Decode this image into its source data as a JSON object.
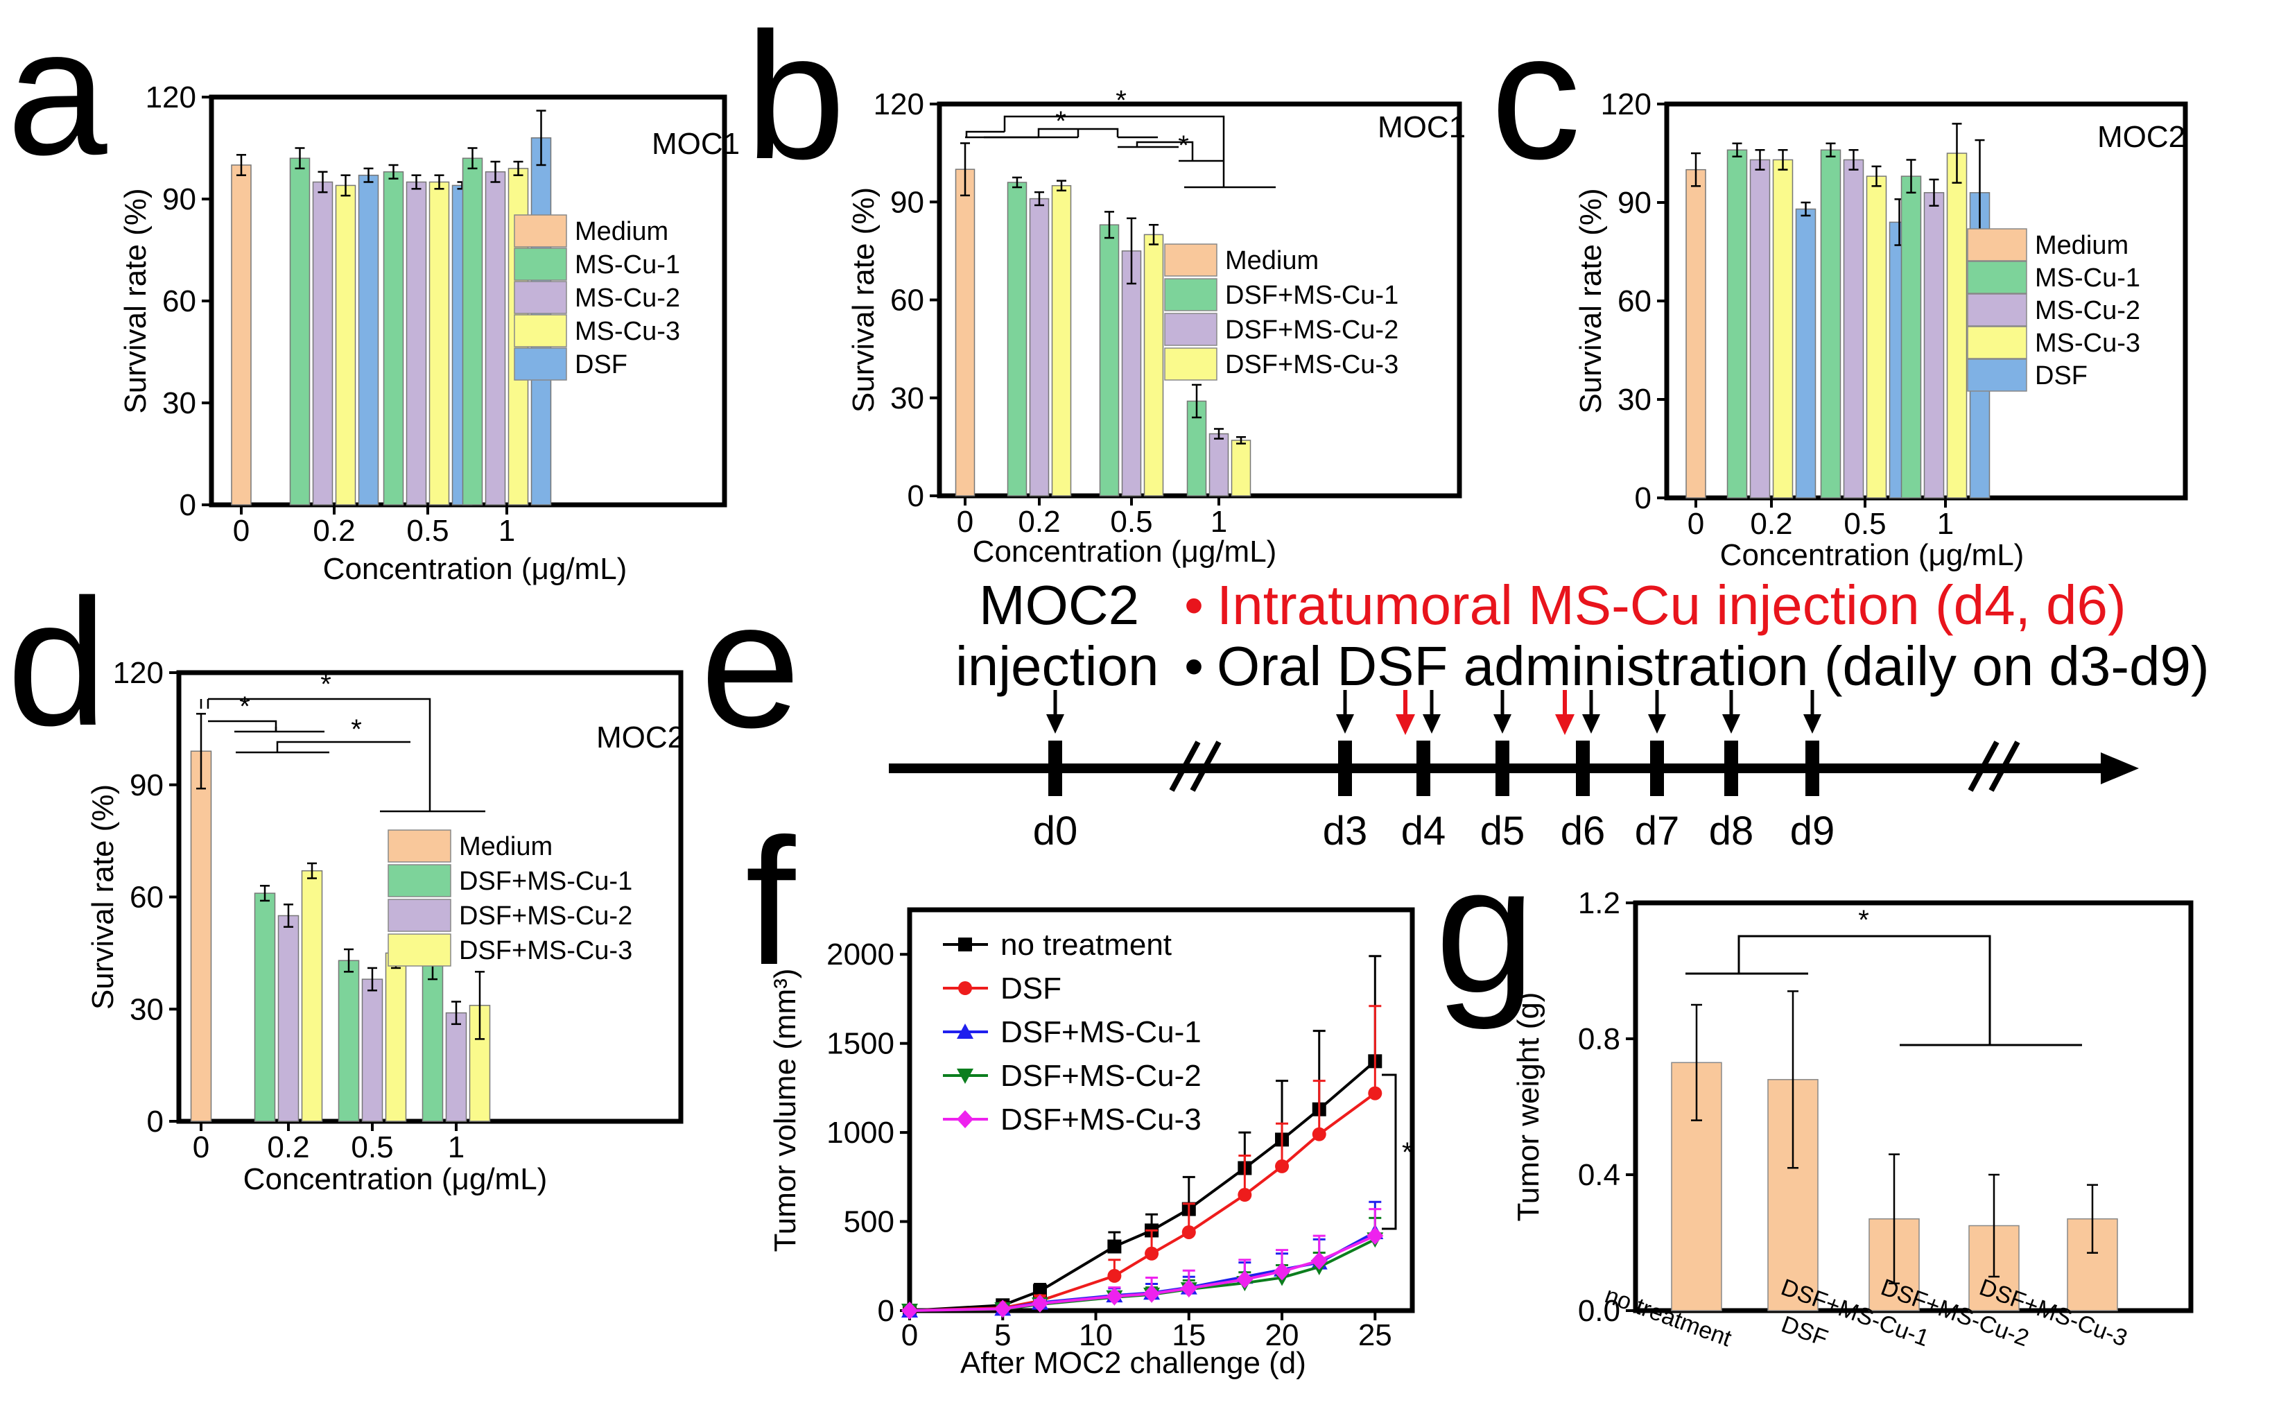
{
  "chart_data": [
    {
      "panel": "a",
      "type": "bar",
      "title": "MOC1",
      "xlabel": "Concentration (μg/mL)",
      "ylabel": "Survival rate (%)",
      "ylim": [
        0,
        120
      ],
      "yticks": [
        "0",
        "30",
        "60",
        "90",
        "120"
      ],
      "categories": [
        "0",
        "0.2",
        "0.5",
        "1"
      ],
      "series": [
        {
          "name": "Medium",
          "color": "#f9c89b",
          "values": [
            100,
            null,
            null,
            null
          ],
          "errors": [
            3,
            null,
            null,
            null
          ]
        },
        {
          "name": "MS-Cu-1",
          "color": "#7dd39a",
          "values": [
            null,
            102,
            98,
            102
          ],
          "errors": [
            null,
            3,
            2,
            3
          ]
        },
        {
          "name": "MS-Cu-2",
          "color": "#c4b3d8",
          "values": [
            null,
            95,
            95,
            98
          ],
          "errors": [
            null,
            3,
            2,
            3
          ]
        },
        {
          "name": "MS-Cu-3",
          "color": "#fafa8c",
          "values": [
            null,
            94,
            95,
            99
          ],
          "errors": [
            null,
            3,
            2,
            2
          ]
        },
        {
          "name": "DSF",
          "color": "#7fb1e4",
          "values": [
            null,
            97,
            94,
            108
          ],
          "errors": [
            null,
            2,
            1,
            8
          ]
        }
      ]
    },
    {
      "panel": "b",
      "type": "bar",
      "title": "MOC1",
      "xlabel": "Concentration (μg/mL)",
      "ylabel": "Survival rate (%)",
      "ylim": [
        0,
        120
      ],
      "yticks": [
        "0",
        "30",
        "60",
        "90",
        "120"
      ],
      "categories": [
        "0",
        "0.2",
        "0.5",
        "1"
      ],
      "series": [
        {
          "name": "Medium",
          "color": "#f9c89b",
          "values": [
            100,
            null,
            null,
            null
          ],
          "errors": [
            8,
            null,
            null,
            null
          ]
        },
        {
          "name": "DSF+MS-Cu-1",
          "color": "#7dd39a",
          "values": [
            null,
            96,
            83,
            29
          ],
          "errors": [
            null,
            1.5,
            4,
            5
          ]
        },
        {
          "name": "DSF+MS-Cu-2",
          "color": "#c4b3d8",
          "values": [
            null,
            91,
            75,
            19
          ],
          "errors": [
            null,
            2,
            10,
            1.5
          ]
        },
        {
          "name": "DSF+MS-Cu-3",
          "color": "#fafa8c",
          "values": [
            null,
            95,
            80,
            17
          ],
          "errors": [
            null,
            1.5,
            3,
            1
          ]
        }
      ],
      "significance": [
        "*",
        "*",
        "*"
      ]
    },
    {
      "panel": "c",
      "type": "bar",
      "title": "MOC2",
      "xlabel": "Concentration (μg/mL)",
      "ylabel": "Survival rate (%)",
      "ylim": [
        0,
        120
      ],
      "yticks": [
        "0",
        "30",
        "60",
        "90",
        "120"
      ],
      "categories": [
        "0",
        "0.2",
        "0.5",
        "1"
      ],
      "series": [
        {
          "name": "Medium",
          "color": "#f9c89b",
          "values": [
            100,
            null,
            null,
            null
          ],
          "errors": [
            5,
            null,
            null,
            null
          ]
        },
        {
          "name": "MS-Cu-1",
          "color": "#7dd39a",
          "values": [
            null,
            106,
            106,
            98
          ],
          "errors": [
            null,
            2,
            2,
            5
          ]
        },
        {
          "name": "MS-Cu-2",
          "color": "#c4b3d8",
          "values": [
            null,
            103,
            103,
            93
          ],
          "errors": [
            null,
            3,
            3,
            4
          ]
        },
        {
          "name": "MS-Cu-3",
          "color": "#fafa8c",
          "values": [
            null,
            103,
            98,
            105
          ],
          "errors": [
            null,
            3,
            3,
            9
          ]
        },
        {
          "name": "DSF",
          "color": "#7fb1e4",
          "values": [
            null,
            88,
            84,
            93
          ],
          "errors": [
            null,
            2,
            7,
            16
          ]
        }
      ]
    },
    {
      "panel": "d",
      "type": "bar",
      "title": "MOC2",
      "xlabel": "Concentration (μg/mL)",
      "ylabel": "Survival rate (%)",
      "ylim": [
        0,
        120
      ],
      "yticks": [
        "0",
        "30",
        "60",
        "90",
        "120"
      ],
      "categories": [
        "0",
        "0.2",
        "0.5",
        "1"
      ],
      "series": [
        {
          "name": "Medium",
          "color": "#f9c89b",
          "values": [
            99,
            null,
            null,
            null
          ],
          "errors": [
            10,
            null,
            null,
            null
          ]
        },
        {
          "name": "DSF+MS-Cu-1",
          "color": "#7dd39a",
          "values": [
            null,
            61,
            43,
            42
          ],
          "errors": [
            null,
            2,
            3,
            4
          ]
        },
        {
          "name": "DSF+MS-Cu-2",
          "color": "#c4b3d8",
          "values": [
            null,
            55,
            38,
            29
          ],
          "errors": [
            null,
            3,
            3,
            3
          ]
        },
        {
          "name": "DSF+MS-Cu-3",
          "color": "#fafa8c",
          "values": [
            null,
            67,
            45,
            31
          ],
          "errors": [
            null,
            2,
            4,
            9
          ]
        }
      ],
      "significance": [
        "*",
        "*",
        "*"
      ]
    },
    {
      "panel": "e",
      "type": "timeline",
      "heading": {
        "injection_label_1": "MOC2",
        "injection_label_2": "injection",
        "bullet": "•",
        "red_line": "Intratumoral MS-Cu injection (d4, d6)",
        "black_line": "Oral DSF administration (daily on d3-d9)"
      },
      "days": [
        "d0",
        "d3",
        "d4",
        "d5",
        "d6",
        "d7",
        "d8",
        "d9"
      ],
      "red_arrow_days": [
        "d4",
        "d6"
      ],
      "black_arrow_days": [
        "d0",
        "d3",
        "d4",
        "d5",
        "d6",
        "d7",
        "d8",
        "d9"
      ],
      "axis_break": "//"
    },
    {
      "panel": "f",
      "type": "line",
      "xlabel": "After MOC2 challenge (d)",
      "ylabel": "Tumor volume (mm³)",
      "xlim": [
        0,
        27
      ],
      "ylim": [
        0,
        2250
      ],
      "xticks": [
        "0",
        "5",
        "10",
        "15",
        "20",
        "25"
      ],
      "yticks": [
        "0",
        "500",
        "1000",
        "1500",
        "2000"
      ],
      "x": [
        0,
        5,
        7,
        11,
        13,
        15,
        18,
        20,
        22,
        25
      ],
      "series": [
        {
          "name": "no treatment",
          "color": "#000000",
          "marker": "square",
          "values": [
            0,
            30,
            110,
            360,
            450,
            570,
            800,
            960,
            1130,
            1400
          ],
          "errors": [
            0,
            10,
            40,
            80,
            90,
            180,
            200,
            330,
            440,
            590
          ]
        },
        {
          "name": "DSF",
          "color": "#ee1c1c",
          "marker": "circle",
          "values": [
            0,
            15,
            55,
            195,
            320,
            440,
            650,
            810,
            990,
            1220
          ],
          "errors": [
            0,
            10,
            30,
            90,
            130,
            160,
            220,
            240,
            300,
            490
          ]
        },
        {
          "name": "DSF+MS-Cu-1",
          "color": "#1f1fee",
          "marker": "triangle",
          "values": [
            0,
            10,
            45,
            85,
            100,
            130,
            190,
            230,
            270,
            440
          ],
          "errors": [
            0,
            5,
            20,
            40,
            50,
            60,
            80,
            90,
            130,
            170
          ]
        },
        {
          "name": "DSF+MS-Cu-2",
          "color": "#0c7e1e",
          "marker": "tri-down",
          "values": [
            0,
            8,
            35,
            75,
            90,
            120,
            155,
            185,
            245,
            400
          ],
          "errors": [
            0,
            5,
            15,
            30,
            40,
            50,
            60,
            70,
            80,
            120
          ]
        },
        {
          "name": "DSF+MS-Cu-3",
          "color": "#ee22ee",
          "marker": "diamond",
          "values": [
            0,
            10,
            40,
            80,
            95,
            125,
            175,
            220,
            280,
            420
          ],
          "errors": [
            0,
            8,
            20,
            50,
            90,
            100,
            110,
            120,
            140,
            150
          ]
        }
      ],
      "significance": "*"
    },
    {
      "panel": "g",
      "type": "bar",
      "ylabel": "Tumor weight (g)",
      "ylim": [
        0,
        1.2
      ],
      "yticks": [
        "0.0",
        "0.4",
        "0.8",
        "1.2"
      ],
      "categories": [
        "no treatment",
        "DSF",
        "DSF+MS-Cu-1",
        "DSF+MS-Cu-2",
        "DSF+MS-Cu-3"
      ],
      "values": [
        0.73,
        0.68,
        0.27,
        0.25,
        0.27
      ],
      "errors": [
        0.17,
        0.26,
        0.19,
        0.15,
        0.1
      ],
      "color": "#f9c89b",
      "significance": "*"
    }
  ]
}
